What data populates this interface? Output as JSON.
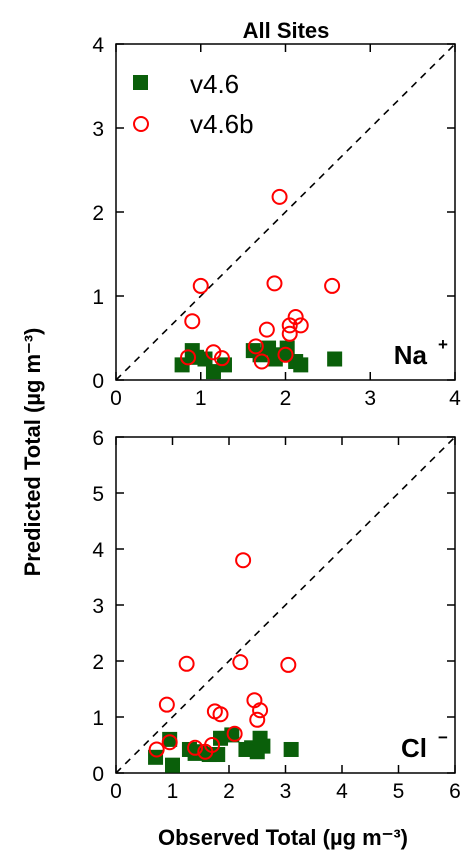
{
  "title": "All Sites",
  "xlabel": "Observed Total (µg m⁻³)",
  "ylabel": "Predicted Total (µg m⁻³)",
  "colors": {
    "v46": "#0a5f0a",
    "v46b": "#ff0000",
    "axis": "#000000"
  },
  "legend": {
    "position": "top-left",
    "entries": [
      "v4.6",
      "v4.6b"
    ]
  },
  "chart_data": [
    {
      "type": "scatter",
      "ion": "Na",
      "ion_sup": "+",
      "xlim": [
        0,
        4
      ],
      "ylim": [
        0,
        4
      ],
      "xticks": [
        0,
        1,
        2,
        3,
        4
      ],
      "yticks": [
        0,
        1,
        2,
        3,
        4
      ],
      "reference_line": "1:1",
      "series": [
        {
          "name": "v4.6",
          "marker": "filled-square",
          "points": [
            [
              0.78,
              0.18
            ],
            [
              0.9,
              0.35
            ],
            [
              0.95,
              0.27
            ],
            [
              1.05,
              0.25
            ],
            [
              1.15,
              0.1
            ],
            [
              1.28,
              0.18
            ],
            [
              1.62,
              0.35
            ],
            [
              1.7,
              0.3
            ],
            [
              1.8,
              0.38
            ],
            [
              1.88,
              0.25
            ],
            [
              1.95,
              0.3
            ],
            [
              2.02,
              0.38
            ],
            [
              2.12,
              0.22
            ],
            [
              2.18,
              0.18
            ],
            [
              2.58,
              0.25
            ]
          ]
        },
        {
          "name": "v4.6b",
          "marker": "open-circle",
          "points": [
            [
              0.85,
              0.27
            ],
            [
              0.9,
              0.7
            ],
            [
              1.0,
              1.12
            ],
            [
              1.15,
              0.33
            ],
            [
              1.25,
              0.26
            ],
            [
              1.65,
              0.4
            ],
            [
              1.72,
              0.22
            ],
            [
              1.78,
              0.6
            ],
            [
              1.87,
              1.15
            ],
            [
              1.93,
              2.18
            ],
            [
              2.0,
              0.3
            ],
            [
              2.05,
              0.55
            ],
            [
              2.05,
              0.65
            ],
            [
              2.12,
              0.75
            ],
            [
              2.18,
              0.65
            ],
            [
              2.55,
              1.12
            ]
          ]
        }
      ]
    },
    {
      "type": "scatter",
      "ion": "Cl",
      "ion_sup": "−",
      "xlim": [
        0,
        6
      ],
      "ylim": [
        0,
        6
      ],
      "xticks": [
        0,
        1,
        2,
        3,
        4,
        5,
        6
      ],
      "yticks": [
        0,
        1,
        2,
        3,
        4,
        5,
        6
      ],
      "reference_line": "1:1",
      "series": [
        {
          "name": "v4.6",
          "marker": "filled-square",
          "points": [
            [
              0.7,
              0.28
            ],
            [
              0.95,
              0.6
            ],
            [
              1.0,
              0.14
            ],
            [
              1.3,
              0.42
            ],
            [
              1.4,
              0.35
            ],
            [
              1.5,
              0.38
            ],
            [
              1.65,
              0.33
            ],
            [
              1.8,
              0.33
            ],
            [
              1.85,
              0.62
            ],
            [
              2.05,
              0.68
            ],
            [
              2.3,
              0.42
            ],
            [
              2.4,
              0.45
            ],
            [
              2.5,
              0.38
            ],
            [
              2.55,
              0.62
            ],
            [
              2.6,
              0.48
            ],
            [
              3.1,
              0.42
            ]
          ]
        },
        {
          "name": "v4.6b",
          "marker": "open-circle",
          "points": [
            [
              0.72,
              0.42
            ],
            [
              0.9,
              1.22
            ],
            [
              0.95,
              0.55
            ],
            [
              1.25,
              1.95
            ],
            [
              1.4,
              0.45
            ],
            [
              1.58,
              0.38
            ],
            [
              1.7,
              0.5
            ],
            [
              1.75,
              1.1
            ],
            [
              1.85,
              1.05
            ],
            [
              2.1,
              0.7
            ],
            [
              2.2,
              1.98
            ],
            [
              2.25,
              3.8
            ],
            [
              2.45,
              1.3
            ],
            [
              2.5,
              0.95
            ],
            [
              2.55,
              1.12
            ],
            [
              3.05,
              1.93
            ]
          ]
        }
      ]
    }
  ]
}
